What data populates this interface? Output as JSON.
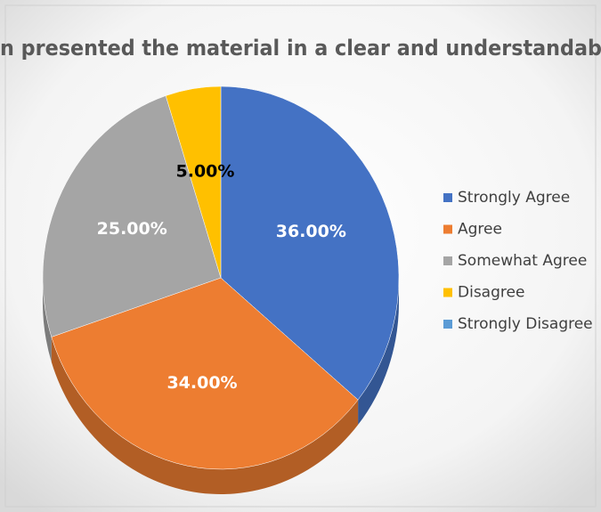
{
  "chart_data": {
    "type": "pie3d",
    "title": "n presented the material in a clear and understandab",
    "categories": [
      "Strongly Agree",
      "Agree",
      "Somewhat Agree",
      "Disagree",
      "Strongly Disagree"
    ],
    "values": [
      36,
      34,
      25,
      5,
      0
    ],
    "value_labels": [
      "36.00%",
      "34.00%",
      "25.00%",
      "5.00%",
      null
    ],
    "colors": [
      "#4472c4",
      "#ed7d31",
      "#a5a5a5",
      "#ffc000",
      "#5b9bd5"
    ],
    "legend": "right"
  }
}
